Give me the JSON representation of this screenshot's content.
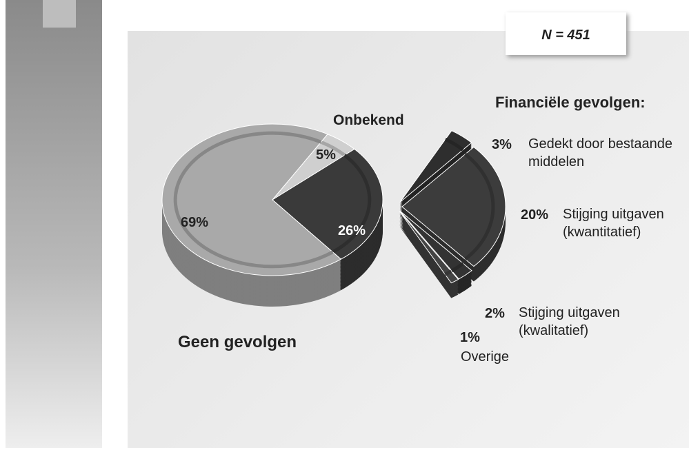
{
  "chart_data": [
    {
      "type": "pie",
      "annotation": "N = 451",
      "categories": [
        "Onbekend",
        null,
        "Geen gevolgen"
      ],
      "values": [
        5,
        26,
        69
      ],
      "value_labels": [
        "5%",
        "26%",
        "69%"
      ],
      "colors": [
        "#cfcfcf",
        "#3a3a3a",
        "#a9a9a9"
      ]
    },
    {
      "type": "pie",
      "title": "Financiële gevolgen:",
      "categories": [
        "Gedekt door bestaande middelen",
        "Stijging uitgaven (kwantitatief)",
        "Stijging uitgaven (kwalitatief)",
        "Overige"
      ],
      "values": [
        3,
        20,
        2,
        1
      ],
      "value_labels": [
        "3%",
        "20%",
        "2%",
        "1%"
      ],
      "colors": [
        "#2e2e2e",
        "#3c3c3c",
        "#333333",
        "#444444"
      ]
    }
  ]
}
